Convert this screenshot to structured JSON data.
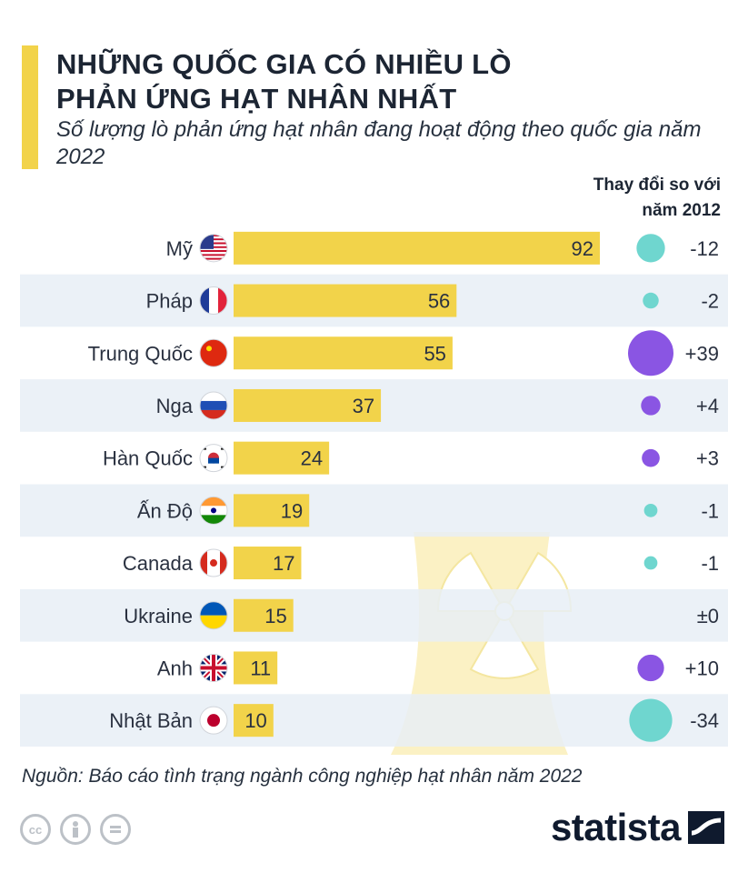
{
  "header": {
    "title": "NHỮNG QUỐC GIA CÓ NHIỀU LÒ PHẢN ỨNG HẠT NHÂN NHẤT",
    "subtitle": "Số lượng lò phản ứng hạt nhân đang hoạt động theo quốc gia năm 2022",
    "change_header": "Thay đổi so với năm 2012"
  },
  "chart_data": {
    "type": "bar",
    "orientation": "horizontal",
    "title": "NHỮNG QUỐC GIA CÓ NHIỀU LÒ PHẢN ỨNG HẠT NHÂN NHẤT",
    "subtitle": "Số lượng lò phản ứng hạt nhân đang hoạt động theo quốc gia năm 2022",
    "categories": [
      "Mỹ",
      "Pháp",
      "Trung Quốc",
      "Nga",
      "Hàn Quốc",
      "Ấn Độ",
      "Canada",
      "Ukraine",
      "Anh",
      "Nhật Bản"
    ],
    "values": [
      92,
      56,
      55,
      37,
      24,
      19,
      17,
      15,
      11,
      10
    ],
    "value_labels": [
      "92",
      "56",
      "55",
      "37",
      "24",
      "19",
      "17",
      "15",
      "11",
      "10"
    ],
    "change_values": [
      -12,
      -2,
      39,
      4,
      3,
      -1,
      -1,
      0,
      10,
      -34
    ],
    "change_labels": [
      "-12",
      "-2",
      "+39",
      "+4",
      "+3",
      "-1",
      "-1",
      "±0",
      "+10",
      "-34"
    ],
    "xlim": [
      0,
      92
    ],
    "grid": false,
    "legend": "none"
  },
  "flags": [
    "us-flag-icon",
    "france-flag-icon",
    "china-flag-icon",
    "russia-flag-icon",
    "south-korea-flag-icon",
    "india-flag-icon",
    "canada-flag-icon",
    "ukraine-flag-icon",
    "uk-flag-icon",
    "japan-flag-icon"
  ],
  "colors": {
    "bar": "#f2d34a",
    "row_alt": "#e8eef6",
    "decrease": "#6fd6cf",
    "increase": "#8a55e3",
    "accent": "#f2d34a"
  },
  "footer": {
    "source": "Nguồn: Báo cáo tình trạng ngành công nghiệp hạt nhân năm 2022",
    "brand": "statista",
    "cc_icons": [
      "cc-icon",
      "attribution-icon",
      "no-derivatives-icon"
    ]
  }
}
